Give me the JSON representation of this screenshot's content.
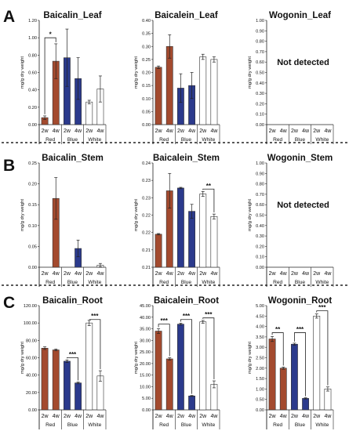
{
  "panels": [
    {
      "letter": "A",
      "row": 0
    },
    {
      "letter": "B",
      "row": 1
    },
    {
      "letter": "C",
      "row": 2
    }
  ],
  "colors": {
    "Red": "#a34a2e",
    "Blue": "#2b3a8c",
    "White": "#ffffff",
    "outline": "#333333"
  },
  "chart_data": [
    {
      "type": "bar",
      "title": "Baicalin_Leaf",
      "ylabel": "mg/g dry weight",
      "row": 0,
      "col": 0,
      "ylim": [
        0,
        1.2
      ],
      "yticks": [
        "0.00",
        "0.20",
        "0.40",
        "0.60",
        "0.80",
        "1.00",
        "1.20"
      ],
      "categories": [
        "2w",
        "4w",
        "2w",
        "4w",
        "2w",
        "4w"
      ],
      "groups": [
        "Red",
        "Blue",
        "White"
      ],
      "values": [
        0.08,
        0.73,
        0.77,
        0.53,
        0.26,
        0.41
      ],
      "errors": [
        0.02,
        0.2,
        0.33,
        0.24,
        0.02,
        0.15
      ],
      "significance": [
        {
          "from": 0,
          "to": 1,
          "label": "*",
          "y": 1.0
        }
      ],
      "detected": true
    },
    {
      "type": "bar",
      "title": "Baicalein_Leaf",
      "ylabel": "mg/g dry weight",
      "row": 0,
      "col": 1,
      "ylim": [
        0,
        0.4
      ],
      "yticks": [
        "0.00",
        "0.05",
        "0.10",
        "0.15",
        "0.20",
        "0.25",
        "0.30",
        "0.35",
        "0.40"
      ],
      "categories": [
        "2w",
        "4w",
        "2w",
        "4w",
        "2w",
        "4w"
      ],
      "groups": [
        "Red",
        "Blue",
        "White"
      ],
      "values": [
        0.22,
        0.3,
        0.14,
        0.15,
        0.26,
        0.25
      ],
      "errors": [
        0.005,
        0.045,
        0.055,
        0.05,
        0.01,
        0.01
      ],
      "significance": [],
      "detected": true
    },
    {
      "type": "bar",
      "title": "Wogonin_Leaf",
      "ylabel": "mg/g dry weight",
      "row": 0,
      "col": 2,
      "ylim": [
        0,
        1.0
      ],
      "yticks": [
        "0.00",
        "0.10",
        "0.20",
        "0.30",
        "0.40",
        "0.50",
        "0.60",
        "0.70",
        "0.80",
        "0.90",
        "1.00"
      ],
      "categories": [
        "2w",
        "4w",
        "2w",
        "4w",
        "2w",
        "4w"
      ],
      "groups": [
        "Red",
        "Blue",
        "White"
      ],
      "values": [
        0,
        0,
        0,
        0,
        0,
        0
      ],
      "errors": [
        0,
        0,
        0,
        0,
        0,
        0
      ],
      "significance": [],
      "detected": false,
      "note": "Not detected"
    },
    {
      "type": "bar",
      "title": "Baicalin_Stem",
      "ylabel": "mg/g dry weight",
      "row": 1,
      "col": 0,
      "ylim": [
        0,
        0.25
      ],
      "yticks": [
        "0.00",
        "0.05",
        "0.10",
        "0.15",
        "0.20",
        "0.25"
      ],
      "categories": [
        "2w",
        "4w",
        "2w",
        "4w",
        "2w",
        "4w"
      ],
      "groups": [
        "Red",
        "Blue",
        "White"
      ],
      "values": [
        0,
        0.165,
        0,
        0.045,
        0,
        0.005
      ],
      "errors": [
        0,
        0.05,
        0,
        0.02,
        0,
        0.004
      ],
      "significance": [],
      "detected": true
    },
    {
      "type": "bar",
      "title": "Baicalein_Stem",
      "ylabel": "mg/g dry weight",
      "row": 1,
      "col": 1,
      "ylim": [
        0.21,
        0.24
      ],
      "yticks": [
        "0.21",
        "0.21",
        "0.22",
        "0.22",
        "0.23",
        "0.23",
        "0.24"
      ],
      "categories": [
        "2w",
        "4w",
        "2w",
        "4w",
        "2w",
        "4w"
      ],
      "groups": [
        "Red",
        "Blue",
        "White"
      ],
      "values": [
        0.2195,
        0.232,
        0.2328,
        0.2261,
        0.2311,
        0.2246
      ],
      "errors": [
        0.0002,
        0.005,
        0.0002,
        0.002,
        0.0007,
        0.0007
      ],
      "significance": [
        {
          "from": 4,
          "to": 5,
          "label": "**",
          "y": 0.2325
        }
      ],
      "detected": true
    },
    {
      "type": "bar",
      "title": "Wogonin_Stem",
      "ylabel": "mg/g dry weight",
      "row": 1,
      "col": 2,
      "ylim": [
        0,
        1.0
      ],
      "yticks": [
        "0.00",
        "0.10",
        "0.20",
        "0.30",
        "0.40",
        "0.50",
        "0.60",
        "0.70",
        "0.80",
        "0.90",
        "1.00"
      ],
      "categories": [
        "2w",
        "4w",
        "2w",
        "4w",
        "2w",
        "4w"
      ],
      "groups": [
        "Red",
        "Blue",
        "White"
      ],
      "values": [
        0,
        0,
        0,
        0,
        0,
        0
      ],
      "errors": [
        0,
        0,
        0,
        0,
        0,
        0
      ],
      "significance": [],
      "detected": false,
      "note": "Not detected"
    },
    {
      "type": "bar",
      "title": "Baicalin_Root",
      "ylabel": "mg/g dry weight",
      "row": 2,
      "col": 0,
      "ylim": [
        0,
        120
      ],
      "yticks": [
        "0.00",
        "20.00",
        "40.00",
        "60.00",
        "80.00",
        "100.00",
        "120.00"
      ],
      "categories": [
        "2w",
        "4w",
        "2w",
        "4w",
        "2w",
        "4w"
      ],
      "groups": [
        "Red",
        "Blue",
        "White"
      ],
      "values": [
        71,
        69,
        56,
        31,
        100,
        39
      ],
      "errors": [
        1.5,
        1,
        1.5,
        1,
        3,
        6
      ],
      "significance": [
        {
          "from": 2,
          "to": 3,
          "label": "***",
          "y": 60
        },
        {
          "from": 4,
          "to": 5,
          "label": "***",
          "y": 104
        }
      ],
      "detected": true
    },
    {
      "type": "bar",
      "title": "Baicalein_Root",
      "ylabel": "mg/g dry weight",
      "row": 2,
      "col": 1,
      "ylim": [
        0,
        45
      ],
      "yticks": [
        "0.00",
        "5.00",
        "10.00",
        "15.00",
        "20.00",
        "25.00",
        "30.00",
        "35.00",
        "40.00",
        "45.00"
      ],
      "categories": [
        "2w",
        "4w",
        "2w",
        "4w",
        "2w",
        "4w"
      ],
      "groups": [
        "Red",
        "Blue",
        "White"
      ],
      "values": [
        34,
        22,
        37,
        6,
        38,
        11
      ],
      "errors": [
        1,
        0.5,
        0.4,
        0.2,
        0.6,
        1.5
      ],
      "significance": [
        {
          "from": 0,
          "to": 1,
          "label": "***",
          "y": 37
        },
        {
          "from": 2,
          "to": 3,
          "label": "***",
          "y": 39
        },
        {
          "from": 4,
          "to": 5,
          "label": "***",
          "y": 39.7
        }
      ],
      "detected": true
    },
    {
      "type": "bar",
      "title": "Wogonin_Root",
      "ylabel": "mg/g dry weight",
      "row": 2,
      "col": 2,
      "ylim": [
        0,
        5
      ],
      "yticks": [
        "0.00",
        "0.50",
        "1.00",
        "1.50",
        "2.00",
        "2.50",
        "3.00",
        "3.50",
        "4.00",
        "4.50",
        "5.00"
      ],
      "categories": [
        "2w",
        "4w",
        "2w",
        "4w",
        "2w",
        "4w"
      ],
      "groups": [
        "Red",
        "Blue",
        "White"
      ],
      "values": [
        3.4,
        2.0,
        3.15,
        0.55,
        4.5,
        1.0
      ],
      "errors": [
        0.12,
        0.05,
        0.05,
        0.03,
        0.1,
        0.1
      ],
      "significance": [
        {
          "from": 0,
          "to": 1,
          "label": "**",
          "y": 3.7
        },
        {
          "from": 2,
          "to": 3,
          "label": "***",
          "y": 3.7
        },
        {
          "from": 4,
          "to": 5,
          "label": "***",
          "y": 4.75
        }
      ],
      "detected": true
    }
  ]
}
